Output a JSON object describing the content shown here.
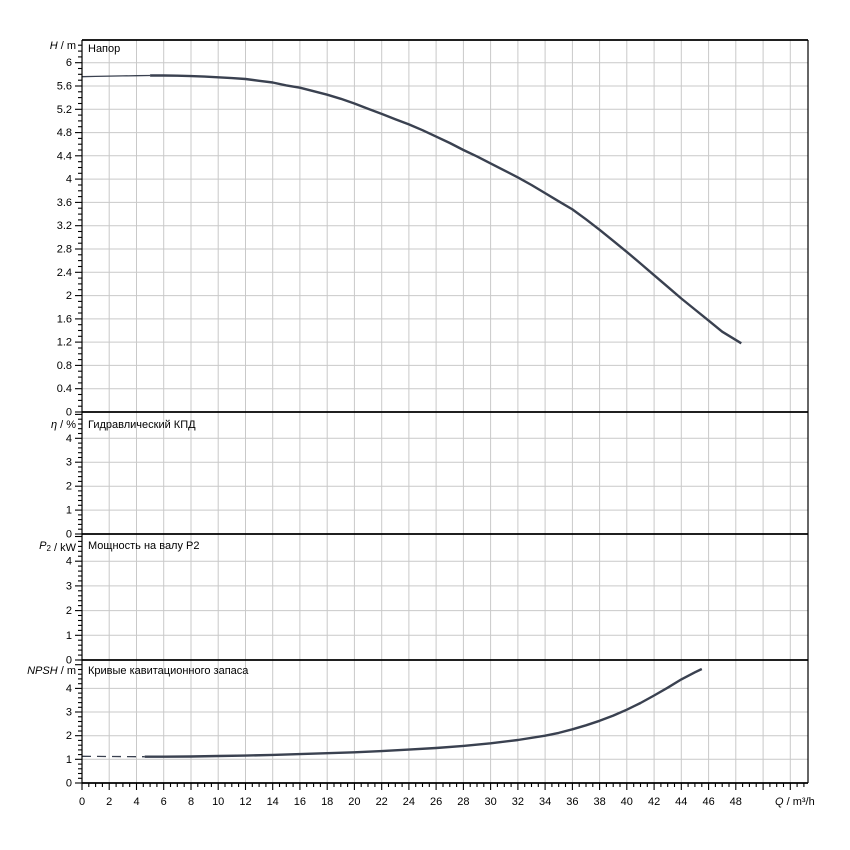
{
  "colors": {
    "curve": "#3a4150",
    "grid": "#c9c9c9",
    "axis": "#000000",
    "tick_label": "#000000",
    "background": "#ffffff"
  },
  "x_axis": {
    "label": "Q / m³/h",
    "label_parts": [
      {
        "t": "Q",
        "i": 1
      },
      {
        "t": " / m³/h",
        "i": 0
      }
    ],
    "min": 0,
    "max": 53.3,
    "major_step": 2,
    "minor_step": 0.5,
    "tick_labels": [
      "0",
      "2",
      "4",
      "6",
      "8",
      "10",
      "12",
      "14",
      "16",
      "18",
      "20",
      "22",
      "24",
      "26",
      "28",
      "30",
      "32",
      "34",
      "36",
      "38",
      "40",
      "42",
      "44",
      "46",
      "48"
    ]
  },
  "chart_data": [
    {
      "type": "line",
      "panel": "head",
      "title": "Напор",
      "ylabel": "H / m",
      "ylabel_parts": [
        {
          "t": "H",
          "i": 1
        },
        {
          "t": " / m",
          "i": 0
        }
      ],
      "xlim": [
        0,
        53.3
      ],
      "ylim": [
        0,
        6.39
      ],
      "ytick_major": 0.4,
      "ytick_minor": 0.1,
      "ytick_labels": [
        "6",
        "5.6",
        "5.2",
        "4.8",
        "4.4",
        "4",
        "3.6",
        "3.2",
        "2.8",
        "2.4",
        "2",
        "1.6",
        "1.2",
        "0.8",
        "0.4",
        "0"
      ],
      "grid": true,
      "series": [
        {
          "name": "head-curve-min-flow",
          "style": "thin",
          "points": [
            [
              0,
              5.76
            ],
            [
              1,
              5.765
            ],
            [
              2,
              5.77
            ],
            [
              3,
              5.773
            ],
            [
              4,
              5.777
            ],
            [
              5,
              5.78
            ]
          ]
        },
        {
          "name": "head-curve",
          "style": "solid",
          "points": [
            [
              5,
              5.78
            ],
            [
              6,
              5.78
            ],
            [
              7,
              5.776
            ],
            [
              8,
              5.77
            ],
            [
              9,
              5.762
            ],
            [
              10,
              5.75
            ],
            [
              11,
              5.736
            ],
            [
              12,
              5.72
            ],
            [
              13,
              5.69
            ],
            [
              14,
              5.66
            ],
            [
              15,
              5.61
            ],
            [
              16,
              5.57
            ],
            [
              17,
              5.51
            ],
            [
              18,
              5.45
            ],
            [
              19,
              5.38
            ],
            [
              20,
              5.3
            ],
            [
              21,
              5.21
            ],
            [
              22,
              5.12
            ],
            [
              23,
              5.03
            ],
            [
              24,
              4.94
            ],
            [
              25,
              4.84
            ],
            [
              26,
              4.73
            ],
            [
              27,
              4.62
            ],
            [
              28,
              4.5
            ],
            [
              29,
              4.39
            ],
            [
              30,
              4.27
            ],
            [
              31,
              4.15
            ],
            [
              32,
              4.03
            ],
            [
              33,
              3.9
            ],
            [
              34,
              3.76
            ],
            [
              35,
              3.62
            ],
            [
              36,
              3.48
            ],
            [
              37,
              3.31
            ],
            [
              38,
              3.13
            ],
            [
              39,
              2.94
            ],
            [
              40,
              2.75
            ],
            [
              41,
              2.55
            ],
            [
              42,
              2.35
            ],
            [
              43,
              2.15
            ],
            [
              44,
              1.95
            ],
            [
              45,
              1.76
            ],
            [
              46,
              1.57
            ],
            [
              47,
              1.38
            ],
            [
              48.4,
              1.18
            ]
          ]
        }
      ]
    },
    {
      "type": "line",
      "panel": "efficiency",
      "title": "Гидравлический КПД",
      "ylabel": "η / %",
      "ylabel_parts": [
        {
          "t": "η",
          "i": 1
        },
        {
          "t": " / %",
          "i": 0
        }
      ],
      "xlim": [
        0,
        53.3
      ],
      "ylim": [
        0,
        5.1
      ],
      "ytick_major": 1,
      "ytick_minor": 0.2,
      "ytick_labels": [
        "4",
        "3",
        "2",
        "1",
        "0"
      ],
      "grid": true,
      "series": []
    },
    {
      "type": "line",
      "panel": "power",
      "title": "Мощность на валу P2",
      "ylabel": "P2 / kW",
      "ylabel_parts": [
        {
          "t": "P",
          "i": 1
        },
        {
          "t": "2",
          "i": 0,
          "sub": 1
        },
        {
          "t": " / kW",
          "i": 0
        }
      ],
      "xlim": [
        0,
        53.3
      ],
      "ylim": [
        0,
        5.1
      ],
      "ytick_major": 1,
      "ytick_minor": 0.2,
      "ytick_labels": [
        "4",
        "3",
        "2",
        "1",
        "0"
      ],
      "grid": true,
      "series": []
    },
    {
      "type": "line",
      "panel": "npsh",
      "title": "Кривые кавитационного запаса",
      "ylabel": "NPSH / m",
      "ylabel_parts": [
        {
          "t": "NPSH",
          "i": 1
        },
        {
          "t": " / m",
          "i": 0
        }
      ],
      "xlim": [
        0,
        53.3
      ],
      "ylim": [
        0,
        5.2
      ],
      "ytick_major": 1,
      "ytick_minor": 0.2,
      "ytick_labels": [
        "4",
        "3",
        "2",
        "1",
        "0"
      ],
      "grid": true,
      "series": [
        {
          "name": "npsh-curve-min-flow",
          "style": "dashed",
          "points": [
            [
              0,
              1.13
            ],
            [
              1,
              1.125
            ],
            [
              2,
              1.12
            ],
            [
              3,
              1.115
            ],
            [
              4,
              1.11
            ],
            [
              4.6,
              1.11
            ]
          ]
        },
        {
          "name": "npsh-curve",
          "style": "solid",
          "points": [
            [
              4.6,
              1.11
            ],
            [
              6,
              1.11
            ],
            [
              8,
              1.12
            ],
            [
              10,
              1.14
            ],
            [
              12,
              1.16
            ],
            [
              14,
              1.19
            ],
            [
              16,
              1.22
            ],
            [
              18,
              1.26
            ],
            [
              20,
              1.3
            ],
            [
              22,
              1.35
            ],
            [
              24,
              1.41
            ],
            [
              26,
              1.48
            ],
            [
              28,
              1.57
            ],
            [
              30,
              1.68
            ],
            [
              32,
              1.82
            ],
            [
              34,
              2.0
            ],
            [
              35,
              2.12
            ],
            [
              36,
              2.27
            ],
            [
              37,
              2.44
            ],
            [
              38,
              2.63
            ],
            [
              39,
              2.85
            ],
            [
              40,
              3.1
            ],
            [
              41,
              3.38
            ],
            [
              42,
              3.7
            ],
            [
              43,
              4.03
            ],
            [
              44,
              4.38
            ],
            [
              45,
              4.68
            ],
            [
              45.5,
              4.82
            ]
          ]
        }
      ]
    }
  ]
}
